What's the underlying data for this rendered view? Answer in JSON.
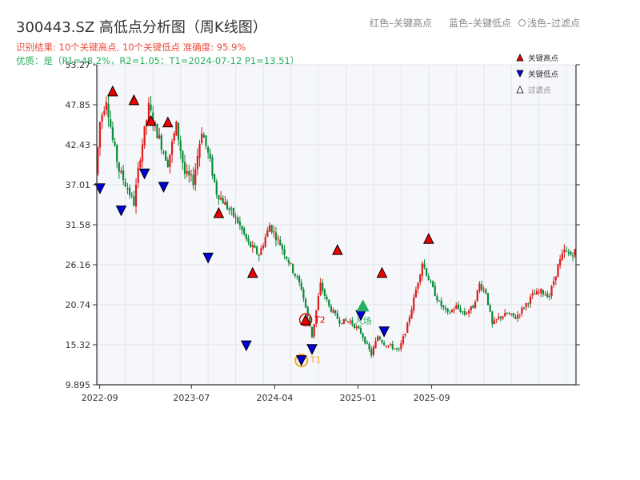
{
  "header": {
    "title": "300443.SZ 高低点分析图（周K线图）",
    "hint_red": "红色–关键高点",
    "hint_blue": "蓝色–关键低点",
    "hint_gray": "浅色–过滤点",
    "result": "识别结果: 10个关键高点, 10个关键低点  准确度: 95.9%",
    "quality": "优质：是（P1=48.2%，R2=1.05；T1=2024-07-12 P1=13.51）"
  },
  "colors": {
    "up": "#dd1b1b",
    "down": "#0a8a3a",
    "high": "#ee0000",
    "low": "#0000dd",
    "entry": "#27ae60",
    "t1": "#f5a623"
  },
  "chart_data": {
    "type": "candlestick",
    "title": "300443.SZ 高低点分析图（周K线图）",
    "y_ticks": [
      9.895,
      15.32,
      20.74,
      26.16,
      31.58,
      37.01,
      42.43,
      47.85,
      53.27
    ],
    "ylim": [
      9.895,
      53.27
    ],
    "x_ticks": [
      {
        "label": "2022-09",
        "date": "2022-09"
      },
      {
        "label": "2023-07",
        "date": "2023-07"
      },
      {
        "label": "2024-04",
        "date": "2024-04"
      },
      {
        "label": "2025-01",
        "date": "2025-01"
      },
      {
        "label": "2025-09",
        "date": "2025-09"
      }
    ],
    "price_path": [
      [
        0,
        38.5
      ],
      [
        2,
        45.5
      ],
      [
        5,
        48.8
      ],
      [
        8,
        43.0
      ],
      [
        11,
        39.0
      ],
      [
        15,
        36.5
      ],
      [
        18,
        34.5
      ],
      [
        21,
        41.0
      ],
      [
        25,
        47.5
      ],
      [
        29,
        44.0
      ],
      [
        34,
        40.0
      ],
      [
        38,
        45.0
      ],
      [
        42,
        38.5
      ],
      [
        46,
        37.5
      ],
      [
        50,
        44.5
      ],
      [
        54,
        40.0
      ],
      [
        57,
        36.0
      ],
      [
        62,
        34.0
      ],
      [
        67,
        32.0
      ],
      [
        72,
        29.0
      ],
      [
        77,
        27.5
      ],
      [
        82,
        31.5
      ],
      [
        87,
        29.0
      ],
      [
        92,
        26.0
      ],
      [
        97,
        23.0
      ],
      [
        102,
        16.5
      ],
      [
        106,
        23.5
      ],
      [
        110,
        20.5
      ],
      [
        115,
        18.5
      ],
      [
        120,
        18.5
      ],
      [
        125,
        17.0
      ],
      [
        130,
        14.0
      ],
      [
        133,
        16.5
      ],
      [
        136,
        15.5
      ],
      [
        140,
        15.0
      ],
      [
        143,
        14.5
      ],
      [
        147,
        18.0
      ],
      [
        150,
        21.5
      ],
      [
        154,
        26.5
      ],
      [
        158,
        23.5
      ],
      [
        162,
        21.0
      ],
      [
        166,
        19.5
      ],
      [
        170,
        20.5
      ],
      [
        174,
        19.5
      ],
      [
        178,
        20.5
      ],
      [
        181,
        23.5
      ],
      [
        184,
        22.5
      ],
      [
        187,
        18.0
      ],
      [
        190,
        19.0
      ],
      [
        194,
        19.5
      ],
      [
        198,
        19.0
      ],
      [
        202,
        20.5
      ],
      [
        206,
        22.0
      ],
      [
        210,
        22.5
      ],
      [
        214,
        22.0
      ],
      [
        218,
        26.0
      ],
      [
        221,
        28.0
      ],
      [
        224,
        27.5
      ],
      [
        226,
        28.0
      ]
    ],
    "key_highs": [
      {
        "label": "关键高点",
        "date": "2022-10-14",
        "value": 49.6
      },
      {
        "label": "关键高点",
        "date": "2022-12-23",
        "value": 48.4
      },
      {
        "label": "关键高点",
        "date": "2023-02-17",
        "value": 45.6
      },
      {
        "label": "关键高点",
        "date": "2023-04-14",
        "value": 45.4
      },
      {
        "label": "关键高点",
        "date": "2023-09-29",
        "value": 33.1
      },
      {
        "label": "关键高点",
        "date": "2024-01-19",
        "value": 25.0
      },
      {
        "label": "关键高点",
        "date": "2024-07-12",
        "value": 18.6,
        "tag": "T2"
      },
      {
        "label": "关键高点",
        "date": "2024-10-25",
        "value": 28.1
      },
      {
        "label": "关键高点",
        "date": "2025-03-21",
        "value": 25.0
      },
      {
        "label": "关键高点",
        "date": "2025-08-22",
        "value": 29.6
      }
    ],
    "key_lows": [
      {
        "label": "关键低点",
        "date": "2022-09-02",
        "value": 36.6
      },
      {
        "label": "关键低点",
        "date": "2022-11-11",
        "value": 33.6
      },
      {
        "label": "关键低点",
        "date": "2023-01-27",
        "value": 38.6
      },
      {
        "label": "关键低点",
        "date": "2023-03-31",
        "value": 36.8
      },
      {
        "label": "关键低点",
        "date": "2023-08-25",
        "value": 27.2
      },
      {
        "label": "关键低点",
        "date": "2023-12-29",
        "value": 15.3
      },
      {
        "label": "关键低点",
        "date": "2024-06-28",
        "value": 13.3,
        "tag": "T1"
      },
      {
        "label": "关键低点",
        "date": "2024-08-02",
        "value": 14.8
      },
      {
        "label": "关键低点",
        "date": "2025-01-10",
        "value": 19.4
      },
      {
        "label": "关键低点",
        "date": "2025-03-28",
        "value": 17.2
      }
    ],
    "entry": {
      "label": "入场",
      "date": "2025-01-17",
      "value": 20.5
    },
    "t1_label": "T1",
    "legend": [
      {
        "label": "关键高点",
        "color": "#ee0000",
        "marker": "triangle-up"
      },
      {
        "label": "关键低点",
        "color": "#0000dd",
        "marker": "triangle-down"
      },
      {
        "label": "过滤点",
        "color": "#ffffff",
        "marker": "triangle-up"
      }
    ],
    "legend_position": "top-right",
    "grid": true
  }
}
